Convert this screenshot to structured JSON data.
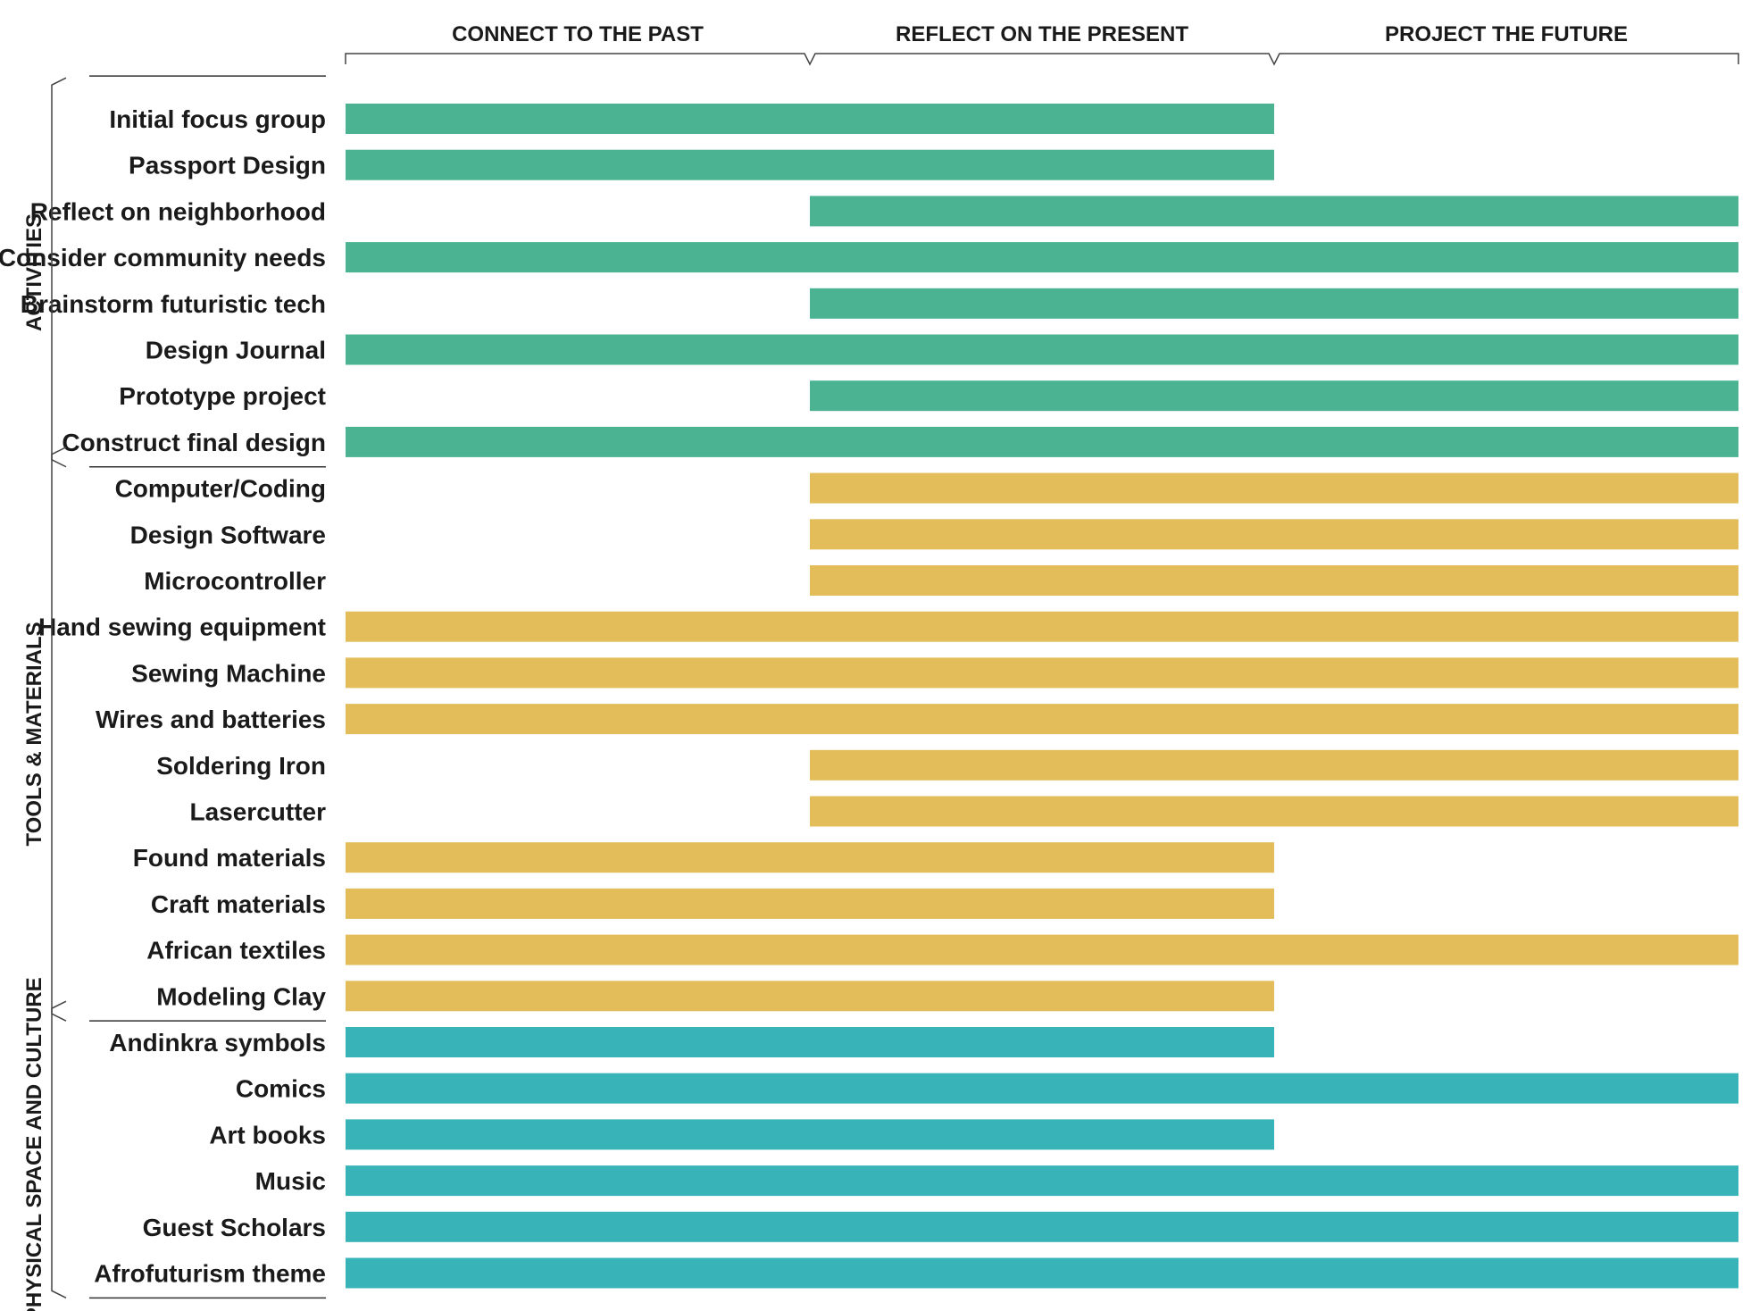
{
  "chart_data": {
    "type": "bar",
    "orientation": "horizontal-range",
    "phases": [
      "CONNECT TO THE PAST",
      "REFLECT ON THE PRESENT",
      "PROJECT THE FUTURE"
    ],
    "phase_axis_range": [
      0,
      3
    ],
    "colors": {
      "ACTIVITIES": "#4bb392",
      "TOOLS & MATERIALS": "#e2bd5a",
      "PHYSICAL SPACE AND CULTURE": "#38b4b8"
    },
    "groups": [
      {
        "label": "ACTIVITIES",
        "items": [
          {
            "label": "Initial focus group",
            "start": 0,
            "end": 2
          },
          {
            "label": "Passport Design",
            "start": 0,
            "end": 2
          },
          {
            "label": "Reflect on neighborhood",
            "start": 1,
            "end": 3
          },
          {
            "label": "Consider community needs",
            "start": 0,
            "end": 3
          },
          {
            "label": "Brainstorm futuristic tech",
            "start": 1,
            "end": 3
          },
          {
            "label": "Design Journal",
            "start": 0,
            "end": 3
          },
          {
            "label": "Prototype project",
            "start": 1,
            "end": 3
          },
          {
            "label": "Construct final design",
            "start": 0,
            "end": 3
          }
        ]
      },
      {
        "label": "TOOLS & MATERIALS",
        "items": [
          {
            "label": "Computer/Coding",
            "start": 1,
            "end": 3
          },
          {
            "label": "Design Software",
            "start": 1,
            "end": 3
          },
          {
            "label": "Microcontroller",
            "start": 1,
            "end": 3
          },
          {
            "label": "Hand sewing equipment",
            "start": 0,
            "end": 3
          },
          {
            "label": "Sewing Machine",
            "start": 0,
            "end": 3
          },
          {
            "label": "Wires and batteries",
            "start": 0,
            "end": 3
          },
          {
            "label": "Soldering Iron",
            "start": 1,
            "end": 3
          },
          {
            "label": "Lasercutter",
            "start": 1,
            "end": 3
          },
          {
            "label": "Found materials",
            "start": 0,
            "end": 2
          },
          {
            "label": "Craft materials",
            "start": 0,
            "end": 2
          },
          {
            "label": "African textiles",
            "start": 0,
            "end": 3
          },
          {
            "label": "Modeling Clay",
            "start": 0,
            "end": 2
          }
        ]
      },
      {
        "label": "PHYSICAL SPACE AND CULTURE",
        "items": [
          {
            "label": "Andinkra symbols",
            "start": 0,
            "end": 2
          },
          {
            "label": "Comics",
            "start": 0,
            "end": 3
          },
          {
            "label": "Art books",
            "start": 0,
            "end": 2
          },
          {
            "label": "Music",
            "start": 0,
            "end": 3
          },
          {
            "label": "Guest Scholars",
            "start": 0,
            "end": 3
          },
          {
            "label": "Afrofuturism theme",
            "start": 0,
            "end": 3
          }
        ]
      }
    ]
  }
}
